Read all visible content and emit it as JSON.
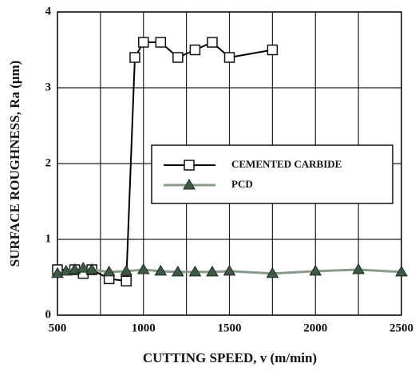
{
  "chart_data": {
    "type": "line",
    "xlabel": "CUTTING SPEED, v (m/min)",
    "ylabel": "SURFACE ROUGHNESS, Ra (μm)",
    "xlim": [
      500,
      2500
    ],
    "xticks": [
      500,
      1000,
      1500,
      2000,
      2500
    ],
    "xgrid_minor": [
      750,
      1250,
      1750,
      2250
    ],
    "ylim": [
      0,
      4
    ],
    "yticks": [
      0,
      1,
      2,
      3,
      4
    ],
    "grid": true,
    "series": [
      {
        "name": "CEMENTED CARBIDE",
        "color": "#000000",
        "marker": "square",
        "x": [
          500,
          600,
          650,
          700,
          800,
          900,
          950,
          1000,
          1100,
          1200,
          1300,
          1400,
          1500,
          1750
        ],
        "values": [
          0.6,
          0.6,
          0.55,
          0.6,
          0.48,
          0.45,
          3.4,
          3.6,
          3.6,
          3.4,
          3.5,
          3.6,
          3.4,
          3.5
        ]
      },
      {
        "name": "PCD",
        "color": "#8a9a8a",
        "marker": "triangle",
        "x": [
          500,
          550,
          600,
          650,
          700,
          800,
          900,
          1000,
          1100,
          1200,
          1300,
          1400,
          1500,
          1750,
          2000,
          2250,
          2500
        ],
        "values": [
          0.55,
          0.58,
          0.6,
          0.62,
          0.6,
          0.57,
          0.58,
          0.6,
          0.58,
          0.57,
          0.57,
          0.57,
          0.58,
          0.55,
          0.58,
          0.6,
          0.57
        ]
      }
    ]
  }
}
